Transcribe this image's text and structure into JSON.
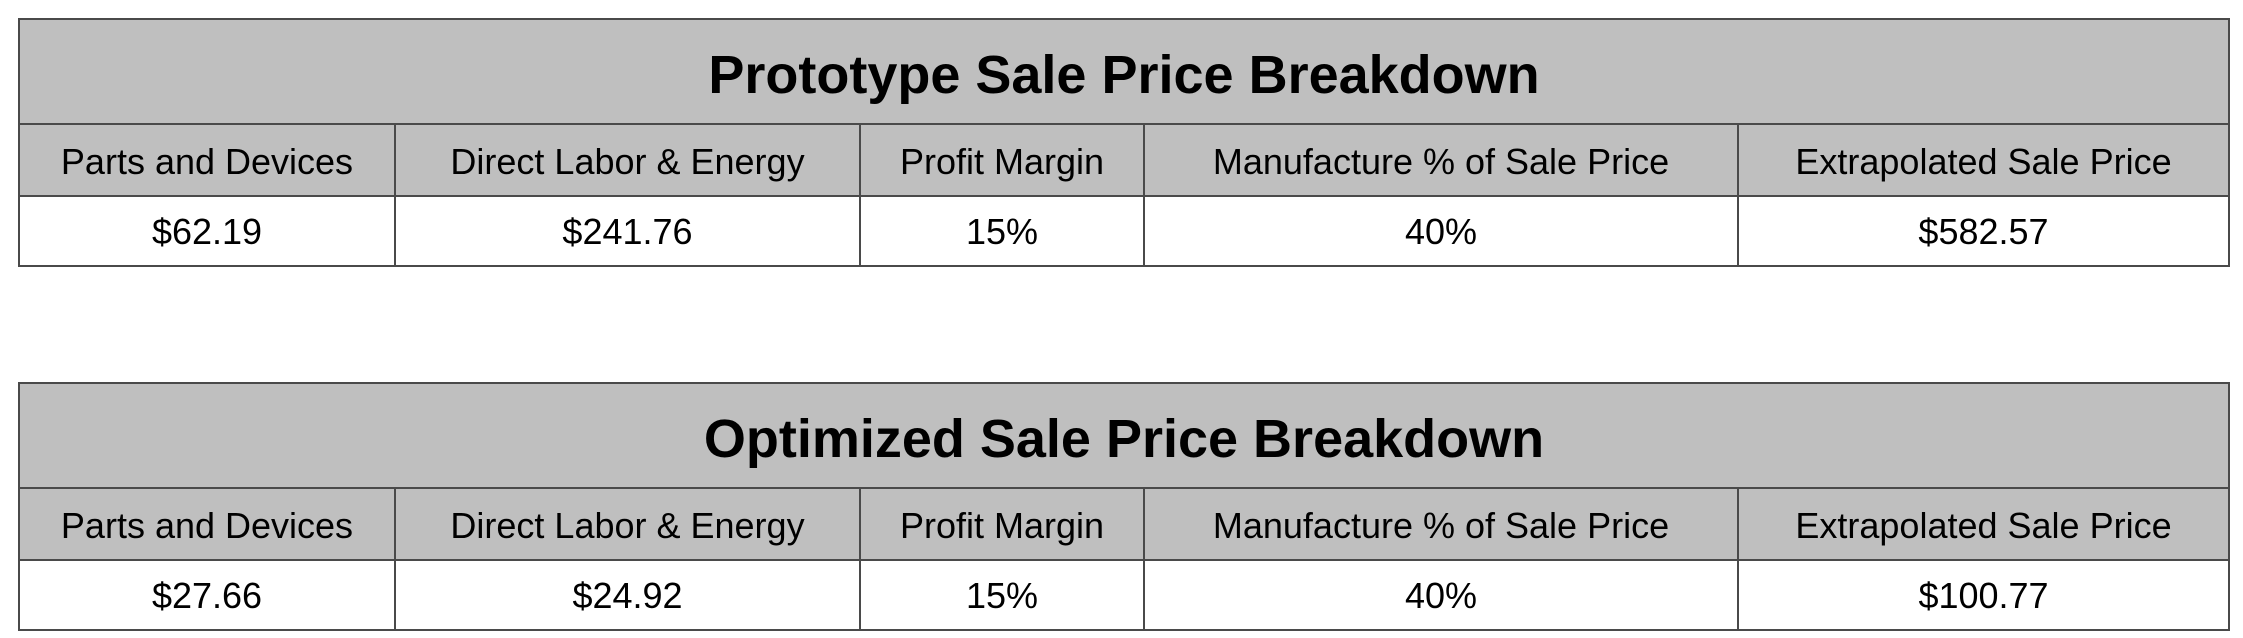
{
  "tables": [
    {
      "title": "Prototype Sale Price Breakdown",
      "headers": [
        "Parts and Devices",
        "Direct Labor & Energy",
        "Profit Margin",
        "Manufacture % of Sale Price",
        "Extrapolated Sale Price"
      ],
      "values": [
        "$62.19",
        "$241.76",
        "15%",
        "40%",
        "$582.57"
      ]
    },
    {
      "title": "Optimized Sale Price Breakdown",
      "headers": [
        "Parts and Devices",
        "Direct Labor & Energy",
        "Profit Margin",
        "Manufacture % of Sale Price",
        "Extrapolated Sale Price"
      ],
      "values": [
        "$27.66",
        "$24.92",
        "15%",
        "40%",
        "$100.77"
      ]
    }
  ],
  "colors": {
    "header_background": "#bfbfbf",
    "value_background": "#ffffff",
    "border": "#4a4a4a"
  }
}
